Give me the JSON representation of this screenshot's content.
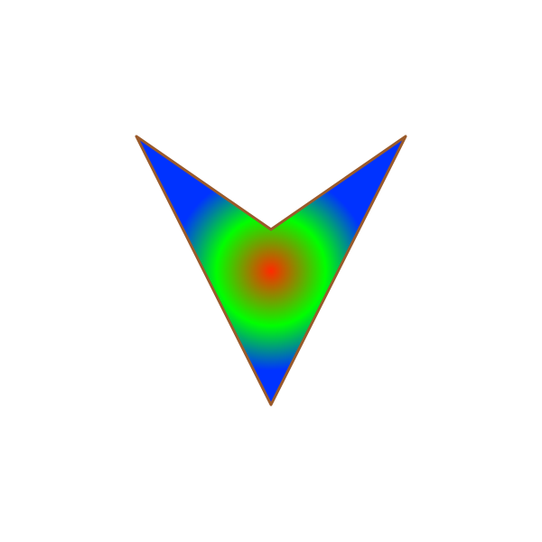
{
  "shape": {
    "kind": "chevron-down",
    "fill": {
      "type": "radial-gradient",
      "center_color": "#ff2a00",
      "mid_color": "#00ff00",
      "outer_color": "#0033ff"
    },
    "stroke_color": "#9a5a2a"
  },
  "background_color": "#ffffff"
}
